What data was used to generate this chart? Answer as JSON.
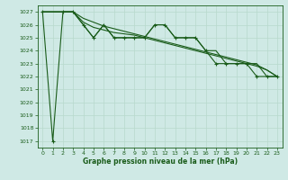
{
  "title": "Graphe pression niveau de la mer (hPa)",
  "background_color": "#cfe9e5",
  "grid_color": "#b8d9cc",
  "line_color": "#1a5c1a",
  "xlim": [
    -0.5,
    23.5
  ],
  "ylim": [
    1016.5,
    1027.5
  ],
  "yticks": [
    1017,
    1018,
    1019,
    1020,
    1021,
    1022,
    1023,
    1024,
    1025,
    1026,
    1027
  ],
  "xticks": [
    0,
    1,
    2,
    3,
    4,
    5,
    6,
    7,
    8,
    9,
    10,
    11,
    12,
    13,
    14,
    15,
    16,
    17,
    18,
    19,
    20,
    21,
    22,
    23
  ],
  "series_markers": [
    [
      0,
      1027.0
    ],
    [
      1,
      1017.0
    ],
    [
      2,
      1027.0
    ],
    [
      3,
      1027.0
    ],
    [
      4,
      1026.0
    ],
    [
      5,
      1025.0
    ],
    [
      6,
      1026.0
    ],
    [
      7,
      1025.0
    ],
    [
      8,
      1025.0
    ],
    [
      9,
      1025.0
    ],
    [
      10,
      1025.0
    ],
    [
      11,
      1026.0
    ],
    [
      12,
      1026.0
    ],
    [
      13,
      1025.0
    ],
    [
      14,
      1025.0
    ],
    [
      15,
      1025.0
    ],
    [
      16,
      1024.0
    ],
    [
      17,
      1023.0
    ],
    [
      18,
      1023.0
    ],
    [
      19,
      1023.0
    ],
    [
      20,
      1023.0
    ],
    [
      21,
      1022.0
    ],
    [
      22,
      1022.0
    ],
    [
      23,
      1022.0
    ]
  ],
  "series_smooth1": [
    [
      0,
      1027.0
    ],
    [
      2,
      1027.0
    ],
    [
      3,
      1027.0
    ],
    [
      4,
      1026.2
    ],
    [
      5,
      1025.8
    ],
    [
      6,
      1025.6
    ],
    [
      7,
      1025.4
    ],
    [
      8,
      1025.3
    ],
    [
      9,
      1025.2
    ],
    [
      10,
      1025.0
    ],
    [
      11,
      1024.8
    ],
    [
      12,
      1024.6
    ],
    [
      13,
      1024.4
    ],
    [
      14,
      1024.2
    ],
    [
      15,
      1024.0
    ],
    [
      16,
      1023.8
    ],
    [
      17,
      1023.6
    ],
    [
      18,
      1023.4
    ],
    [
      19,
      1023.2
    ],
    [
      20,
      1023.0
    ],
    [
      21,
      1022.8
    ],
    [
      22,
      1022.5
    ],
    [
      23,
      1022.0
    ]
  ],
  "series_smooth2": [
    [
      0,
      1027.0
    ],
    [
      2,
      1027.0
    ],
    [
      3,
      1027.0
    ],
    [
      4,
      1026.5
    ],
    [
      5,
      1026.2
    ],
    [
      6,
      1025.9
    ],
    [
      7,
      1025.7
    ],
    [
      8,
      1025.5
    ],
    [
      9,
      1025.3
    ],
    [
      10,
      1025.1
    ],
    [
      11,
      1024.9
    ],
    [
      12,
      1024.7
    ],
    [
      13,
      1024.5
    ],
    [
      14,
      1024.3
    ],
    [
      15,
      1024.1
    ],
    [
      16,
      1023.9
    ],
    [
      17,
      1023.7
    ],
    [
      18,
      1023.5
    ],
    [
      19,
      1023.3
    ],
    [
      20,
      1023.1
    ],
    [
      21,
      1022.9
    ],
    [
      22,
      1022.5
    ],
    [
      23,
      1022.0
    ]
  ],
  "series_zigzag": [
    [
      0,
      1027.0
    ],
    [
      2,
      1027.0
    ],
    [
      3,
      1027.0
    ],
    [
      4,
      1026.0
    ],
    [
      5,
      1025.0
    ],
    [
      6,
      1026.0
    ],
    [
      7,
      1025.0
    ],
    [
      8,
      1025.0
    ],
    [
      9,
      1025.0
    ],
    [
      10,
      1025.0
    ],
    [
      11,
      1026.0
    ],
    [
      12,
      1026.0
    ],
    [
      13,
      1025.0
    ],
    [
      14,
      1025.0
    ],
    [
      15,
      1025.0
    ],
    [
      16,
      1024.0
    ],
    [
      17,
      1024.0
    ],
    [
      18,
      1023.0
    ],
    [
      19,
      1023.0
    ],
    [
      20,
      1023.0
    ],
    [
      21,
      1023.0
    ],
    [
      22,
      1022.0
    ],
    [
      23,
      1022.0
    ]
  ]
}
